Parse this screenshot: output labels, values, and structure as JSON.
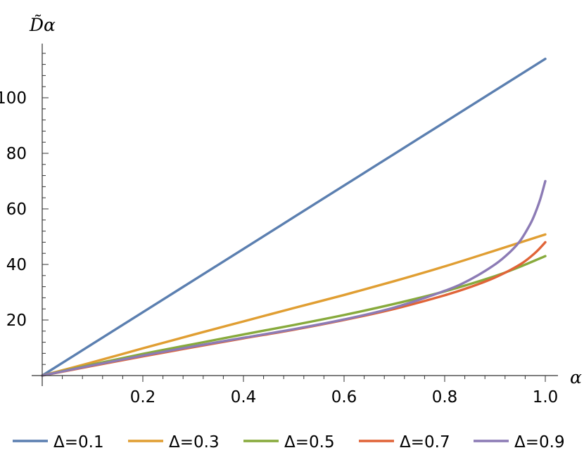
{
  "chart_data": {
    "type": "line",
    "xlabel": "α",
    "ylabel": "D̃α",
    "xlim": [
      0,
      1.0
    ],
    "ylim": [
      0,
      120
    ],
    "x_ticks": [
      0.2,
      0.4,
      0.6,
      0.8,
      1.0
    ],
    "x_tick_labels": [
      "0.2",
      "0.4",
      "0.6",
      "0.8",
      "1.0"
    ],
    "y_ticks": [
      20,
      40,
      60,
      80,
      100
    ],
    "y_tick_labels": [
      "20",
      "40",
      "60",
      "80",
      "100"
    ],
    "grid": false,
    "legend_position": "bottom",
    "series": [
      {
        "name": "Δ=0.1",
        "color": "#5b7fb0",
        "x": [
          0,
          0.1,
          0.2,
          0.3,
          0.4,
          0.5,
          0.6,
          0.7,
          0.8,
          0.9,
          1.0
        ],
        "values": [
          0,
          11.4,
          22.8,
          34.2,
          45.6,
          57,
          68.4,
          79.8,
          91.2,
          102.6,
          114
        ]
      },
      {
        "name": "Δ=0.3",
        "color": "#e09e32",
        "x": [
          0,
          0.1,
          0.2,
          0.3,
          0.4,
          0.5,
          0.6,
          0.7,
          0.8,
          0.9,
          1.0
        ],
        "values": [
          0,
          4.8,
          9.8,
          14.7,
          19.5,
          24.3,
          29.0,
          34.0,
          39.3,
          45.0,
          50.8
        ]
      },
      {
        "name": "Δ=0.5",
        "color": "#87aa3c",
        "x": [
          0,
          0.1,
          0.2,
          0.3,
          0.4,
          0.5,
          0.6,
          0.7,
          0.8,
          0.9,
          0.95,
          1.0
        ],
        "values": [
          0,
          4.0,
          7.8,
          11.3,
          14.8,
          18.2,
          21.8,
          25.8,
          30.3,
          35.8,
          39.2,
          43.0
        ]
      },
      {
        "name": "Δ=0.7",
        "color": "#e06438",
        "x": [
          0,
          0.1,
          0.2,
          0.3,
          0.4,
          0.5,
          0.6,
          0.7,
          0.8,
          0.85,
          0.9,
          0.95,
          0.98,
          1.0
        ],
        "values": [
          0,
          3.5,
          6.9,
          10.2,
          13.4,
          16.5,
          20.0,
          24.0,
          28.9,
          31.8,
          35.3,
          40.0,
          44.2,
          48.0
        ]
      },
      {
        "name": "Δ=0.9",
        "color": "#8c7bb5",
        "x": [
          0,
          0.1,
          0.2,
          0.3,
          0.4,
          0.5,
          0.6,
          0.7,
          0.8,
          0.85,
          0.9,
          0.93,
          0.95,
          0.97,
          0.98,
          0.99,
          1.0
        ],
        "values": [
          0,
          3.7,
          7.2,
          10.5,
          13.6,
          16.7,
          20.2,
          24.5,
          30.5,
          34.5,
          40.0,
          44.5,
          48.5,
          54.5,
          58.5,
          63.5,
          70.0
        ]
      }
    ]
  }
}
